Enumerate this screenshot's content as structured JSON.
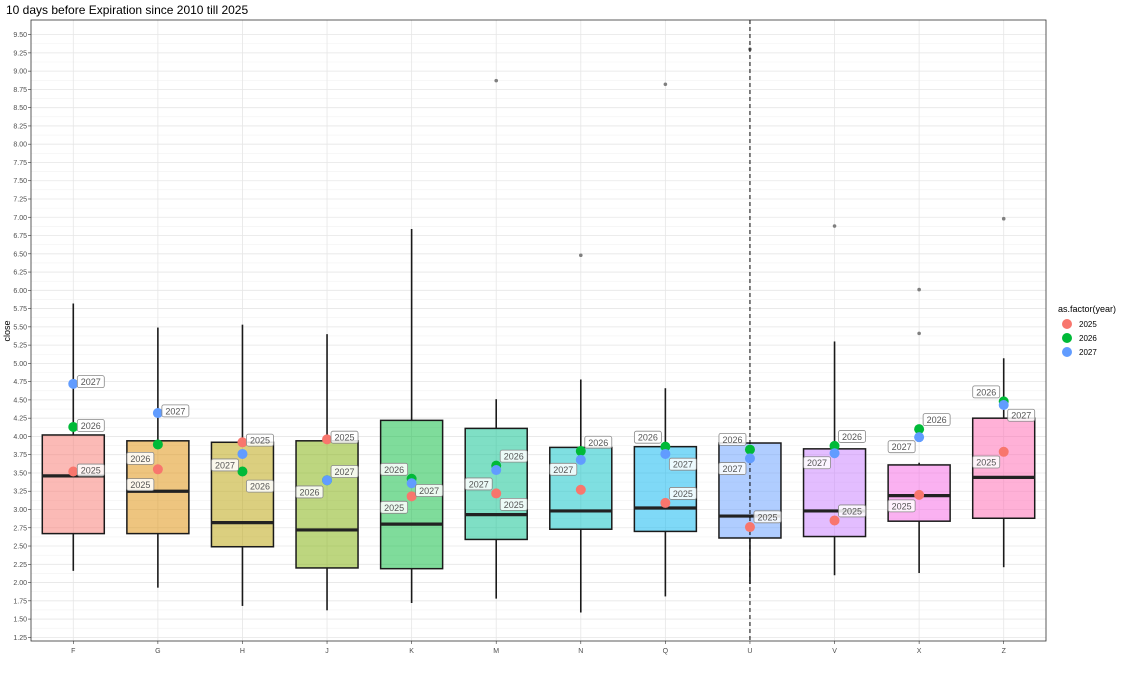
{
  "chart_data": {
    "type": "boxplot",
    "title": "10 days before Expiration since 2010 till 2025",
    "xlabel": "",
    "ylabel": "close",
    "ylim": [
      1.2,
      9.7
    ],
    "y_ticks": [
      1.25,
      1.5,
      1.75,
      2.0,
      2.25,
      2.5,
      2.75,
      3.0,
      3.25,
      3.5,
      3.75,
      4.0,
      4.25,
      4.5,
      4.75,
      5.0,
      5.25,
      5.5,
      5.75,
      6.0,
      6.25,
      6.5,
      6.75,
      7.0,
      7.25,
      7.5,
      7.75,
      8.0,
      8.25,
      8.5,
      8.75,
      9.0,
      9.25,
      9.5
    ],
    "y_tick_labels": [
      "1.25",
      "1.50",
      "1.75",
      "2.00",
      "2.25",
      "2.50",
      "2.75",
      "3.00",
      "3.25",
      "3.50",
      "3.75",
      "4.00",
      "4.25",
      "4.50",
      "4.75",
      "5.00",
      "5.25",
      "5.50",
      "5.75",
      "6.00",
      "6.25",
      "6.50",
      "6.75",
      "7.00",
      "7.25",
      "7.50",
      "7.75",
      "8.00",
      "8.25",
      "8.50",
      "8.75",
      "9.00",
      "9.25",
      "9.50"
    ],
    "categories": [
      "F",
      "G",
      "H",
      "J",
      "K",
      "M",
      "N",
      "Q",
      "U",
      "V",
      "X",
      "Z"
    ],
    "grid": true,
    "vline_category": "U",
    "boxes": [
      {
        "cat": "F",
        "fill": "#F8766D",
        "lower": 2.16,
        "q1": 2.67,
        "median": 3.46,
        "q3": 4.02,
        "upper": 5.82,
        "outliers": []
      },
      {
        "cat": "G",
        "fill": "#DE8C00",
        "lower": 1.93,
        "q1": 2.67,
        "median": 3.25,
        "q3": 3.94,
        "upper": 5.49,
        "outliers": []
      },
      {
        "cat": "H",
        "fill": "#B79F00",
        "lower": 1.68,
        "q1": 2.49,
        "median": 2.82,
        "q3": 3.92,
        "upper": 5.53,
        "outliers": []
      },
      {
        "cat": "J",
        "fill": "#7CAE00",
        "lower": 1.62,
        "q1": 2.2,
        "median": 2.72,
        "q3": 3.94,
        "upper": 5.4,
        "outliers": []
      },
      {
        "cat": "K",
        "fill": "#00BA38",
        "lower": 1.72,
        "q1": 2.19,
        "median": 2.8,
        "q3": 4.22,
        "upper": 6.84,
        "outliers": []
      },
      {
        "cat": "M",
        "fill": "#00C08B",
        "lower": 1.78,
        "q1": 2.59,
        "median": 2.93,
        "q3": 4.11,
        "upper": 4.51,
        "outliers": [
          8.87
        ]
      },
      {
        "cat": "N",
        "fill": "#00BFC4",
        "lower": 1.59,
        "q1": 2.73,
        "median": 2.98,
        "q3": 3.85,
        "upper": 4.78,
        "outliers": [
          6.48
        ]
      },
      {
        "cat": "Q",
        "fill": "#00B4F0",
        "lower": 1.81,
        "q1": 2.7,
        "median": 3.02,
        "q3": 3.86,
        "upper": 4.66,
        "outliers": [
          8.82
        ]
      },
      {
        "cat": "U",
        "fill": "#619CFF",
        "lower": 1.98,
        "q1": 2.61,
        "median": 2.91,
        "q3": 3.91,
        "upper": 3.91,
        "outliers": [
          9.3
        ]
      },
      {
        "cat": "V",
        "fill": "#C77CFF",
        "lower": 2.1,
        "q1": 2.63,
        "median": 2.98,
        "q3": 3.83,
        "upper": 5.3,
        "outliers": [
          6.88
        ]
      },
      {
        "cat": "X",
        "fill": "#F564E3",
        "lower": 2.13,
        "q1": 2.84,
        "median": 3.19,
        "q3": 3.61,
        "upper": 3.64,
        "outliers": [
          5.41,
          6.01
        ]
      },
      {
        "cat": "Z",
        "fill": "#FF64B0",
        "lower": 2.21,
        "q1": 2.88,
        "median": 3.44,
        "q3": 4.25,
        "upper": 5.07,
        "outliers": [
          6.98
        ]
      }
    ],
    "series": [
      {
        "name": "2025",
        "color": "#F8766D",
        "points": [
          {
            "cat": "F",
            "y": 3.52
          },
          {
            "cat": "G",
            "y": 3.55
          },
          {
            "cat": "H",
            "y": 3.92
          },
          {
            "cat": "J",
            "y": 3.96
          },
          {
            "cat": "K",
            "y": 3.18
          },
          {
            "cat": "M",
            "y": 3.22
          },
          {
            "cat": "N",
            "y": 3.27
          },
          {
            "cat": "Q",
            "y": 3.09
          },
          {
            "cat": "U",
            "y": 2.76
          },
          {
            "cat": "V",
            "y": 2.85
          },
          {
            "cat": "X",
            "y": 3.2
          },
          {
            "cat": "Z",
            "y": 3.79
          }
        ]
      },
      {
        "name": "2026",
        "color": "#00BA38",
        "points": [
          {
            "cat": "F",
            "y": 4.13
          },
          {
            "cat": "G",
            "y": 3.89
          },
          {
            "cat": "H",
            "y": 3.52
          },
          {
            "cat": "J",
            "y": 3.4
          },
          {
            "cat": "K",
            "y": 3.42
          },
          {
            "cat": "M",
            "y": 3.6
          },
          {
            "cat": "N",
            "y": 3.8
          },
          {
            "cat": "Q",
            "y": 3.86
          },
          {
            "cat": "U",
            "y": 3.82
          },
          {
            "cat": "V",
            "y": 3.87
          },
          {
            "cat": "X",
            "y": 4.1
          },
          {
            "cat": "Z",
            "y": 4.48
          }
        ]
      },
      {
        "name": "2027",
        "color": "#619CFF",
        "points": [
          {
            "cat": "F",
            "y": 4.72
          },
          {
            "cat": "G",
            "y": 4.32
          },
          {
            "cat": "H",
            "y": 3.76
          },
          {
            "cat": "J",
            "y": 3.4
          },
          {
            "cat": "K",
            "y": 3.36
          },
          {
            "cat": "M",
            "y": 3.54
          },
          {
            "cat": "N",
            "y": 3.68
          },
          {
            "cat": "Q",
            "y": 3.76
          },
          {
            "cat": "U",
            "y": 3.7
          },
          {
            "cat": "V",
            "y": 3.77
          },
          {
            "cat": "X",
            "y": 3.99
          },
          {
            "cat": "Z",
            "y": 4.43
          }
        ]
      }
    ],
    "legend": {
      "title": "as.factor(year)",
      "position": "right",
      "items": [
        {
          "name": "2025",
          "color": "#F8766D"
        },
        {
          "name": "2026",
          "color": "#00BA38"
        },
        {
          "name": "2027",
          "color": "#619CFF"
        }
      ]
    },
    "annotations": [
      {
        "cat": "F",
        "text": "2027",
        "y": 4.75,
        "side": "right"
      },
      {
        "cat": "F",
        "text": "2026",
        "y": 4.15,
        "side": "right"
      },
      {
        "cat": "F",
        "text": "2025",
        "y": 3.54,
        "side": "right"
      },
      {
        "cat": "G",
        "text": "2027",
        "y": 4.35,
        "side": "right"
      },
      {
        "cat": "G",
        "text": "2026",
        "y": 3.7,
        "side": "left"
      },
      {
        "cat": "G",
        "text": "2025",
        "y": 3.34,
        "side": "left"
      },
      {
        "cat": "H",
        "text": "2025",
        "y": 3.95,
        "side": "right"
      },
      {
        "cat": "H",
        "text": "2027",
        "y": 3.61,
        "side": "left"
      },
      {
        "cat": "H",
        "text": "2026",
        "y": 3.32,
        "side": "right"
      },
      {
        "cat": "J",
        "text": "2025",
        "y": 3.99,
        "side": "right"
      },
      {
        "cat": "J",
        "text": "2027",
        "y": 3.52,
        "side": "right"
      },
      {
        "cat": "J",
        "text": "2026",
        "y": 3.24,
        "side": "left"
      },
      {
        "cat": "K",
        "text": "2026",
        "y": 3.55,
        "side": "left"
      },
      {
        "cat": "K",
        "text": "2027",
        "y": 3.26,
        "side": "right"
      },
      {
        "cat": "K",
        "text": "2025",
        "y": 3.03,
        "side": "left"
      },
      {
        "cat": "M",
        "text": "2026",
        "y": 3.73,
        "side": "right"
      },
      {
        "cat": "M",
        "text": "2027",
        "y": 3.35,
        "side": "left"
      },
      {
        "cat": "M",
        "text": "2025",
        "y": 3.07,
        "side": "right"
      },
      {
        "cat": "N",
        "text": "2026",
        "y": 3.92,
        "side": "right"
      },
      {
        "cat": "N",
        "text": "2027",
        "y": 3.55,
        "side": "left"
      },
      {
        "cat": "Q",
        "text": "2026",
        "y": 3.99,
        "side": "left"
      },
      {
        "cat": "Q",
        "text": "2027",
        "y": 3.62,
        "side": "right"
      },
      {
        "cat": "Q",
        "text": "2025",
        "y": 3.22,
        "side": "right"
      },
      {
        "cat": "U",
        "text": "2026",
        "y": 3.96,
        "side": "left"
      },
      {
        "cat": "U",
        "text": "2027",
        "y": 3.56,
        "side": "left"
      },
      {
        "cat": "U",
        "text": "2025",
        "y": 2.9,
        "side": "right"
      },
      {
        "cat": "V",
        "text": "2026",
        "y": 4.0,
        "side": "right"
      },
      {
        "cat": "V",
        "text": "2027",
        "y": 3.64,
        "side": "left"
      },
      {
        "cat": "V",
        "text": "2025",
        "y": 2.98,
        "side": "right"
      },
      {
        "cat": "X",
        "text": "2026",
        "y": 4.23,
        "side": "right"
      },
      {
        "cat": "X",
        "text": "2027",
        "y": 3.86,
        "side": "left"
      },
      {
        "cat": "X",
        "text": "2025",
        "y": 3.05,
        "side": "left"
      },
      {
        "cat": "Z",
        "text": "2026",
        "y": 4.61,
        "side": "left"
      },
      {
        "cat": "Z",
        "text": "2027",
        "y": 4.29,
        "side": "right"
      },
      {
        "cat": "Z",
        "text": "2025",
        "y": 3.65,
        "side": "left"
      }
    ]
  }
}
